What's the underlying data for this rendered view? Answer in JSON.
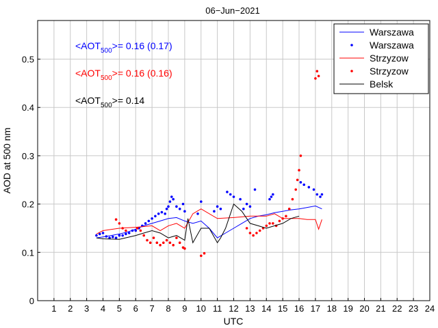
{
  "chart_data": {
    "type": "line",
    "title": "06−Jun−2021",
    "xlabel": "UTC",
    "ylabel": "AOD at 500 nm",
    "xlim": [
      0,
      24
    ],
    "ylim": [
      0,
      0.58
    ],
    "xticks": [
      1,
      2,
      3,
      4,
      5,
      6,
      7,
      8,
      9,
      10,
      11,
      12,
      13,
      14,
      15,
      16,
      17,
      18,
      19,
      20,
      21,
      22,
      23,
      24
    ],
    "yticks": [
      0,
      0.1,
      0.2,
      0.3,
      0.4,
      0.5
    ],
    "xtick_labels": [
      "1",
      "2",
      "3",
      "4",
      "5",
      "6",
      "7",
      "8",
      "9",
      "10",
      "11",
      "12",
      "13",
      "14",
      "15",
      "16",
      "17",
      "18",
      "19",
      "20",
      "21",
      "22",
      "23",
      "24"
    ],
    "ytick_labels": [
      "0",
      "0.1",
      "0.2",
      "0.3",
      "0.4",
      "0.5"
    ],
    "grid": true,
    "legend_position": "top-right",
    "annotations": [
      {
        "prefix": "<AOT",
        "sub": "500",
        "suffix": ">= 0.16 (0.17)",
        "color": "#0000ff"
      },
      {
        "prefix": "<AOT",
        "sub": "500",
        "suffix": ">= 0.16 (0.16)",
        "color": "#ff0000"
      },
      {
        "prefix": "<AOT",
        "sub": "500",
        "suffix": ">= 0.14",
        "color": "#000000"
      }
    ],
    "series": [
      {
        "name": "Warszawa",
        "kind": "line",
        "color": "#0000ff",
        "x": [
          3.6,
          4.0,
          4.5,
          5.0,
          5.5,
          6.0,
          6.5,
          7.0,
          7.5,
          8.0,
          8.5,
          9.0,
          9.5,
          10.0,
          10.5,
          11.0,
          11.5,
          12.0,
          12.5,
          13.0,
          13.5,
          14.0,
          14.5,
          15.0,
          15.5,
          16.0,
          16.5,
          17.0,
          17.4
        ],
        "y": [
          0.13,
          0.132,
          0.135,
          0.138,
          0.142,
          0.148,
          0.155,
          0.16,
          0.165,
          0.17,
          0.172,
          0.165,
          0.16,
          0.165,
          0.15,
          0.13,
          0.14,
          0.15,
          0.16,
          0.17,
          0.175,
          0.178,
          0.182,
          0.185,
          0.188,
          0.19,
          0.193,
          0.196,
          0.19
        ]
      },
      {
        "name": "Warszawa",
        "kind": "points",
        "color": "#0000ff",
        "x": [
          3.6,
          3.8,
          4.0,
          4.2,
          4.4,
          4.6,
          4.8,
          5.0,
          5.2,
          5.4,
          5.6,
          5.8,
          6.0,
          6.2,
          6.4,
          6.6,
          6.8,
          7.0,
          7.2,
          7.4,
          7.6,
          7.8,
          7.9,
          8.0,
          8.1,
          8.2,
          8.3,
          8.5,
          8.7,
          8.9,
          9.0,
          9.8,
          10.0,
          10.8,
          11.0,
          11.2,
          11.6,
          11.8,
          12.0,
          12.4,
          12.6,
          12.8,
          13.0,
          13.3,
          14.2,
          14.3,
          14.4,
          16.1,
          16.3,
          16.6,
          16.9,
          17.1,
          17.3,
          17.4
        ],
        "y": [
          0.135,
          0.138,
          0.14,
          0.133,
          0.13,
          0.132,
          0.13,
          0.135,
          0.135,
          0.138,
          0.14,
          0.145,
          0.145,
          0.15,
          0.155,
          0.16,
          0.165,
          0.17,
          0.175,
          0.18,
          0.183,
          0.18,
          0.19,
          0.195,
          0.205,
          0.215,
          0.21,
          0.195,
          0.19,
          0.2,
          0.185,
          0.18,
          0.205,
          0.185,
          0.195,
          0.19,
          0.225,
          0.22,
          0.215,
          0.21,
          0.19,
          0.2,
          0.195,
          0.23,
          0.21,
          0.215,
          0.22,
          0.245,
          0.24,
          0.235,
          0.23,
          0.22,
          0.215,
          0.22
        ]
      },
      {
        "name": "Strzyzow",
        "kind": "line",
        "color": "#ff0000",
        "x": [
          3.6,
          4.0,
          5.0,
          6.0,
          7.0,
          7.5,
          8.0,
          8.5,
          9.0,
          9.5,
          10.0,
          11.0,
          12.0,
          13.0,
          13.5,
          14.0,
          14.5,
          15.0,
          15.5,
          16.0,
          16.5,
          17.0,
          17.2,
          17.4
        ],
        "y": [
          0.138,
          0.145,
          0.15,
          0.152,
          0.155,
          0.145,
          0.155,
          0.16,
          0.15,
          0.18,
          0.19,
          0.17,
          0.172,
          0.175,
          0.175,
          0.175,
          0.18,
          0.17,
          0.17,
          0.17,
          0.168,
          0.168,
          0.148,
          0.168
        ]
      },
      {
        "name": "Strzyzow",
        "kind": "points",
        "color": "#ff0000",
        "x": [
          4.8,
          5.0,
          5.2,
          5.4,
          6.1,
          6.3,
          6.5,
          6.7,
          6.9,
          7.1,
          7.3,
          7.5,
          7.7,
          7.9,
          8.1,
          8.3,
          8.5,
          8.7,
          8.9,
          9.0,
          10.0,
          10.2,
          12.8,
          13.0,
          13.2,
          13.4,
          13.6,
          13.8,
          14.0,
          14.2,
          14.4,
          14.6,
          14.8,
          15.0,
          15.2,
          15.4,
          15.6,
          15.8,
          15.9,
          16.0,
          16.1,
          17.0,
          17.1,
          17.2
        ],
        "y": [
          0.168,
          0.16,
          0.15,
          0.145,
          0.15,
          0.145,
          0.135,
          0.125,
          0.12,
          0.13,
          0.12,
          0.115,
          0.12,
          0.125,
          0.12,
          0.115,
          0.13,
          0.12,
          0.11,
          0.108,
          0.093,
          0.098,
          0.15,
          0.14,
          0.135,
          0.14,
          0.145,
          0.15,
          0.155,
          0.16,
          0.16,
          0.155,
          0.165,
          0.17,
          0.175,
          0.19,
          0.21,
          0.23,
          0.25,
          0.27,
          0.3,
          0.46,
          0.475,
          0.465
        ]
      },
      {
        "name": "Belsk",
        "kind": "line",
        "color": "#000000",
        "x": [
          3.6,
          4.0,
          5.0,
          6.0,
          6.5,
          7.0,
          7.5,
          8.0,
          8.5,
          9.0,
          9.2,
          9.5,
          10.0,
          10.5,
          11.0,
          11.2,
          11.5,
          12.0,
          12.5,
          13.0,
          13.5,
          14.0,
          14.5,
          15.0,
          15.5,
          16.0
        ],
        "y": [
          0.13,
          0.128,
          0.127,
          0.135,
          0.14,
          0.145,
          0.14,
          0.13,
          0.135,
          0.125,
          0.17,
          0.12,
          0.15,
          0.15,
          0.12,
          0.13,
          0.15,
          0.2,
          0.185,
          0.16,
          0.155,
          0.15,
          0.155,
          0.16,
          0.17,
          0.175
        ]
      }
    ],
    "legend": [
      {
        "label": "Warszawa",
        "kind": "line",
        "color": "#0000ff"
      },
      {
        "label": "Warszawa",
        "kind": "points",
        "color": "#0000ff"
      },
      {
        "label": "Strzyzow",
        "kind": "line",
        "color": "#ff0000"
      },
      {
        "label": "Strzyzow",
        "kind": "points",
        "color": "#ff0000"
      },
      {
        "label": "Belsk",
        "kind": "line",
        "color": "#000000"
      }
    ]
  }
}
